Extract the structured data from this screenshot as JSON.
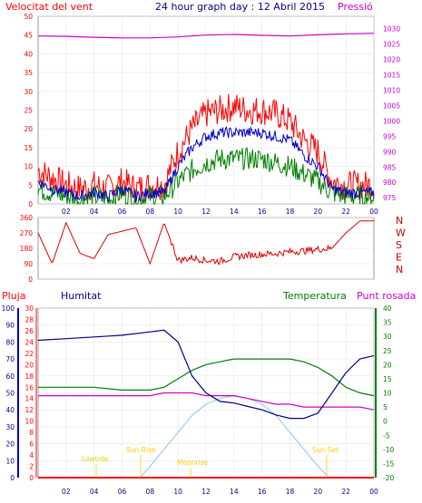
{
  "header": {
    "wind_speed_label": "Velocitat del vent",
    "title": "24 hour graph day : 12 Abril 2015",
    "pressure_label": "Pressió"
  },
  "bottom_header": {
    "rain_label": "Pluja",
    "humidity_label": "Humitat",
    "temperature_label": "Temperatura",
    "dewpoint_label": "Punt rosada"
  },
  "annotations": {
    "sunrise": "Sun Rise",
    "sunset": "Sun Set",
    "moonrise": "Moonrise",
    "moonset": "Lowtide"
  },
  "colors": {
    "wind_gust": "#ff0000",
    "wind_avg": "#0000cc",
    "wind_green": "#008000",
    "pressure": "#cc00cc",
    "direction": "#dd0000",
    "humidity": "#00008b",
    "temperature": "#008000",
    "dewpoint": "#cc00cc",
    "solar": "#99ccee",
    "annotation": "#ffcc00",
    "rain": "#ff0000"
  },
  "chart_data": [
    {
      "type": "line",
      "name": "wind-pressure-panel",
      "x_ticks": [
        "02",
        "04",
        "06",
        "08",
        "10",
        "12",
        "14",
        "16",
        "18",
        "20",
        "22",
        "00"
      ],
      "xlim": [
        0,
        24
      ],
      "ylim_left": [
        0,
        50
      ],
      "y_ticks_left": [
        0,
        5,
        10,
        15,
        20,
        25,
        30,
        35,
        40,
        45,
        50
      ],
      "ylim_right": [
        973,
        1034
      ],
      "y_ticks_right": [
        975,
        980,
        985,
        990,
        995,
        1000,
        1005,
        1010,
        1015,
        1020,
        1025,
        1030
      ],
      "pressure": [
        [
          0,
          1027.6
        ],
        [
          2,
          1027.5
        ],
        [
          4,
          1027.2
        ],
        [
          6,
          1027.0
        ],
        [
          8,
          1027.0
        ],
        [
          10,
          1027.3
        ],
        [
          12,
          1027.9
        ],
        [
          14,
          1028.1
        ],
        [
          16,
          1027.8
        ],
        [
          18,
          1027.6
        ],
        [
          20,
          1028.0
        ],
        [
          22,
          1028.3
        ],
        [
          24,
          1028.5
        ]
      ],
      "wind_gust_envelope": [
        [
          0,
          9
        ],
        [
          1,
          7
        ],
        [
          2,
          5
        ],
        [
          3,
          4
        ],
        [
          4,
          5
        ],
        [
          5,
          4
        ],
        [
          6,
          6
        ],
        [
          7,
          4
        ],
        [
          8,
          5
        ],
        [
          9,
          5
        ],
        [
          10,
          14
        ],
        [
          11,
          20
        ],
        [
          12,
          24
        ],
        [
          13,
          25
        ],
        [
          14,
          26
        ],
        [
          15,
          25
        ],
        [
          16,
          25
        ],
        [
          17,
          24
        ],
        [
          18,
          22
        ],
        [
          19,
          17
        ],
        [
          20,
          14
        ],
        [
          21,
          6
        ],
        [
          22,
          5
        ],
        [
          23,
          5
        ],
        [
          24,
          5
        ]
      ],
      "wind_avg_envelope": [
        [
          0,
          6
        ],
        [
          1,
          4
        ],
        [
          2,
          3
        ],
        [
          3,
          2
        ],
        [
          4,
          3
        ],
        [
          5,
          2
        ],
        [
          6,
          4
        ],
        [
          7,
          2
        ],
        [
          8,
          3
        ],
        [
          9,
          3
        ],
        [
          10,
          10
        ],
        [
          11,
          15
        ],
        [
          12,
          18
        ],
        [
          13,
          19
        ],
        [
          14,
          19
        ],
        [
          15,
          19
        ],
        [
          16,
          19
        ],
        [
          17,
          18
        ],
        [
          18,
          17
        ],
        [
          19,
          13
        ],
        [
          20,
          10
        ],
        [
          21,
          4
        ],
        [
          22,
          3
        ],
        [
          23,
          3
        ],
        [
          24,
          3
        ]
      ],
      "wind_green_envelope": [
        [
          0,
          4
        ],
        [
          1,
          3
        ],
        [
          2,
          2
        ],
        [
          3,
          1
        ],
        [
          4,
          2
        ],
        [
          5,
          1
        ],
        [
          6,
          3
        ],
        [
          7,
          1
        ],
        [
          8,
          2
        ],
        [
          9,
          2
        ],
        [
          10,
          6
        ],
        [
          11,
          9
        ],
        [
          12,
          11
        ],
        [
          13,
          12
        ],
        [
          14,
          12
        ],
        [
          15,
          12
        ],
        [
          16,
          12
        ],
        [
          17,
          11
        ],
        [
          18,
          10
        ],
        [
          19,
          8
        ],
        [
          20,
          6
        ],
        [
          21,
          3
        ],
        [
          22,
          2
        ],
        [
          23,
          2
        ],
        [
          24,
          2
        ]
      ]
    },
    {
      "type": "scatter",
      "name": "wind-direction-panel",
      "xlim": [
        0,
        24
      ],
      "ylim": [
        0,
        360
      ],
      "y_ticks": [
        0,
        90,
        180,
        270,
        360
      ],
      "compass_labels": [
        "N",
        "W",
        "S",
        "E",
        "N"
      ],
      "direction": [
        [
          0,
          270
        ],
        [
          1,
          90
        ],
        [
          2,
          330
        ],
        [
          3,
          150
        ],
        [
          4,
          120
        ],
        [
          5,
          260
        ],
        [
          6,
          280
        ],
        [
          7,
          300
        ],
        [
          8,
          90
        ],
        [
          9,
          330
        ],
        [
          10,
          110
        ],
        [
          11,
          125
        ],
        [
          12,
          110
        ],
        [
          13,
          105
        ],
        [
          14,
          130
        ],
        [
          15,
          140
        ],
        [
          16,
          145
        ],
        [
          17,
          150
        ],
        [
          18,
          160
        ],
        [
          19,
          165
        ],
        [
          20,
          175
        ],
        [
          21,
          180
        ],
        [
          22,
          270
        ],
        [
          23,
          340
        ],
        [
          24,
          340
        ]
      ]
    },
    {
      "type": "line",
      "name": "humidity-temperature-panel",
      "x_ticks": [
        "02",
        "04",
        "06",
        "08",
        "10",
        "12",
        "14",
        "16",
        "18",
        "20",
        "22",
        "00"
      ],
      "xlim": [
        0,
        24
      ],
      "humidity_ticks": [
        0,
        10,
        20,
        30,
        40,
        50,
        60,
        70,
        80,
        90,
        100
      ],
      "rain_ticks": [
        0,
        2,
        4,
        6,
        8,
        10,
        12,
        14,
        16,
        18,
        20,
        22,
        24,
        26,
        28,
        30
      ],
      "temperature_ticks": [
        -20,
        -15,
        -10,
        -5,
        0,
        5,
        10,
        15,
        20,
        25,
        30,
        35,
        40
      ],
      "humidity": [
        [
          0,
          81
        ],
        [
          2,
          82
        ],
        [
          4,
          83
        ],
        [
          6,
          84
        ],
        [
          8,
          86
        ],
        [
          9,
          87
        ],
        [
          10,
          80
        ],
        [
          11,
          60
        ],
        [
          12,
          50
        ],
        [
          13,
          45
        ],
        [
          14,
          44
        ],
        [
          15,
          42
        ],
        [
          16,
          40
        ],
        [
          17,
          37
        ],
        [
          18,
          35
        ],
        [
          19,
          35
        ],
        [
          20,
          38
        ],
        [
          21,
          50
        ],
        [
          22,
          62
        ],
        [
          23,
          70
        ],
        [
          24,
          72
        ]
      ],
      "temperature": [
        [
          0,
          12
        ],
        [
          2,
          12
        ],
        [
          4,
          12
        ],
        [
          6,
          11
        ],
        [
          8,
          11
        ],
        [
          9,
          12
        ],
        [
          10,
          15
        ],
        [
          11,
          18
        ],
        [
          12,
          20
        ],
        [
          13,
          21
        ],
        [
          14,
          22
        ],
        [
          15,
          22
        ],
        [
          16,
          22
        ],
        [
          17,
          22
        ],
        [
          18,
          22
        ],
        [
          19,
          21
        ],
        [
          20,
          19
        ],
        [
          21,
          16
        ],
        [
          22,
          12
        ],
        [
          23,
          10
        ],
        [
          24,
          9
        ]
      ],
      "dewpoint": [
        [
          0,
          9
        ],
        [
          2,
          9
        ],
        [
          4,
          9
        ],
        [
          6,
          9
        ],
        [
          8,
          9
        ],
        [
          9,
          10
        ],
        [
          10,
          10
        ],
        [
          11,
          10
        ],
        [
          12,
          9
        ],
        [
          13,
          9
        ],
        [
          14,
          9
        ],
        [
          15,
          8
        ],
        [
          16,
          7
        ],
        [
          17,
          6
        ],
        [
          18,
          6
        ],
        [
          19,
          5
        ],
        [
          20,
          5
        ],
        [
          21,
          5
        ],
        [
          22,
          5
        ],
        [
          23,
          5
        ],
        [
          24,
          4
        ]
      ],
      "solar": [
        [
          7.3,
          0
        ],
        [
          8,
          2
        ],
        [
          9,
          5
        ],
        [
          10,
          8
        ],
        [
          11,
          11
        ],
        [
          12,
          13
        ],
        [
          13,
          14
        ],
        [
          14,
          14.5
        ],
        [
          15,
          14
        ],
        [
          16,
          13
        ],
        [
          17,
          11
        ],
        [
          18,
          8
        ],
        [
          19,
          5
        ],
        [
          20,
          2
        ],
        [
          20.8,
          0
        ]
      ],
      "rain": [
        [
          0,
          0
        ],
        [
          24,
          0
        ]
      ]
    }
  ]
}
